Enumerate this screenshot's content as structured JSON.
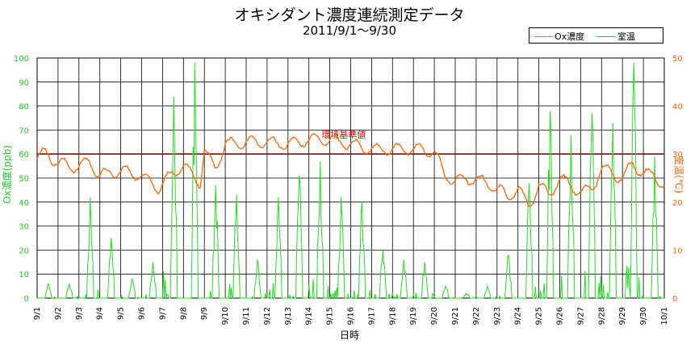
{
  "chart_data": {
    "type": "line",
    "title": "オキシダント濃度連続測定データ",
    "subtitle": "2011/9/1～9/30",
    "xlabel": "日時",
    "ylabel_left": "Ox濃度(ppb)",
    "ylabel_right": "室温(℃)",
    "ylim_left": [
      0,
      100
    ],
    "ylim_right": [
      0,
      50
    ],
    "left_ticks": [
      0,
      10,
      20,
      30,
      40,
      50,
      60,
      70,
      80,
      90,
      100
    ],
    "right_ticks": [
      0,
      10,
      20,
      30,
      40,
      50
    ],
    "x_ticks": [
      "9/1",
      "9/2",
      "9/3",
      "9/4",
      "9/5",
      "9/6",
      "9/7",
      "9/8",
      "9/9",
      "9/10",
      "9/11",
      "9/12",
      "9/13",
      "9/14",
      "9/15",
      "9/16",
      "9/17",
      "9/18",
      "9/19",
      "9/20",
      "9/21",
      "9/22",
      "9/23",
      "9/24",
      "9/25",
      "9/26",
      "9/27",
      "9/28",
      "9/29",
      "9/30",
      "10/1"
    ],
    "grid": true,
    "legend_position": "top-right",
    "reference_line": {
      "label": "環境基準値",
      "value": 60,
      "color": "#990000",
      "label_color": "#ff0000"
    },
    "series": [
      {
        "name": "Ox濃度",
        "axis": "left",
        "color": "#22dd22",
        "daily_peaks": [
          6,
          6,
          42,
          25,
          8,
          15,
          84,
          98,
          47,
          43,
          16,
          42,
          51,
          57,
          42,
          40,
          20,
          16,
          15,
          5,
          2,
          5,
          18,
          48,
          78,
          68,
          77,
          73,
          98,
          59
        ]
      },
      {
        "name": "室温",
        "axis": "right",
        "color": "#ff6600",
        "daily_points": [
          [
            0,
            29
          ],
          [
            0.4,
            30.5
          ],
          [
            1,
            28
          ],
          [
            2,
            27.3
          ],
          [
            2.5,
            28.5
          ],
          [
            3,
            25.5
          ],
          [
            4,
            26.5
          ],
          [
            5,
            25.5
          ],
          [
            5.8,
            23
          ],
          [
            6.5,
            26
          ],
          [
            7,
            27.5
          ],
          [
            7.8,
            24
          ],
          [
            8,
            30.5
          ],
          [
            8.5,
            27
          ],
          [
            9,
            32
          ],
          [
            10,
            32.5
          ],
          [
            11,
            32.5
          ],
          [
            12,
            32
          ],
          [
            13,
            33
          ],
          [
            14,
            33
          ],
          [
            15,
            32
          ],
          [
            16,
            31
          ],
          [
            17,
            31
          ],
          [
            18,
            31
          ],
          [
            19,
            30.5
          ],
          [
            19.5,
            25.5
          ],
          [
            20,
            24.5
          ],
          [
            21,
            24.8
          ],
          [
            22,
            23
          ],
          [
            22.5,
            21
          ],
          [
            23,
            23
          ],
          [
            23.5,
            19
          ],
          [
            24,
            23.5
          ],
          [
            24.5,
            21.5
          ],
          [
            25,
            25
          ],
          [
            26,
            22
          ],
          [
            26.5,
            22.5
          ],
          [
            27,
            27
          ],
          [
            28,
            25
          ],
          [
            28.5,
            28
          ],
          [
            29,
            26
          ],
          [
            29.5,
            25.5
          ],
          [
            30,
            23.5
          ]
        ]
      }
    ],
    "legend": [
      "Ox濃度",
      "室温"
    ]
  }
}
